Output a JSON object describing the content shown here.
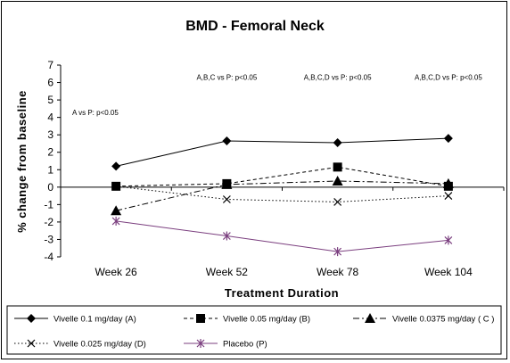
{
  "chart_data": {
    "type": "line",
    "title": "BMD - Femoral Neck",
    "xlabel": "Treatment Duration",
    "ylabel": "% change from baseline",
    "categories": [
      "Week 26",
      "Week 52",
      "Week 78",
      "Week 104"
    ],
    "ylim": [
      -4,
      7
    ],
    "yticks": [
      -4,
      -3,
      -2,
      -1,
      0,
      1,
      2,
      3,
      4,
      5,
      6,
      7
    ],
    "grid": false,
    "legend_position": "bottom",
    "series": [
      {
        "name": "Vivelle 0.1 mg/day (A)",
        "values": [
          1.2,
          2.65,
          2.55,
          2.8
        ],
        "marker": "diamond",
        "dash": "solid",
        "color": "#000000"
      },
      {
        "name": "Vivelle 0.05 mg/day (B)",
        "values": [
          0.05,
          0.2,
          1.15,
          0.05
        ],
        "marker": "square",
        "dash": "dashed",
        "color": "#000000"
      },
      {
        "name": "Vivelle 0.0375 mg/day ( C )",
        "values": [
          -1.35,
          0.15,
          0.35,
          0.2
        ],
        "marker": "triangle",
        "dash": "dashdot",
        "color": "#000000"
      },
      {
        "name": "Vivelle 0.025 mg/day (D)",
        "values": [
          0.05,
          -0.7,
          -0.85,
          -0.5
        ],
        "marker": "x",
        "dash": "dotted",
        "color": "#000000"
      },
      {
        "name": "Placebo (P)",
        "values": [
          -1.95,
          -2.8,
          -3.7,
          -3.05
        ],
        "marker": "star",
        "dash": "solid",
        "color": "#7B3F7F"
      }
    ],
    "annotations": [
      {
        "text": "A vs P: p<0.05",
        "category": "Week 26",
        "y": 4.3
      },
      {
        "text": "A,B,C vs P: p<0.05",
        "category": "Week 52",
        "y": 6.3
      },
      {
        "text": "A,B,C,D vs P: p<0.05",
        "category": "Week 78",
        "y": 6.3
      },
      {
        "text": "A,B,C,D vs P: p<0.05",
        "category": "Week 104",
        "y": 6.3
      }
    ]
  }
}
